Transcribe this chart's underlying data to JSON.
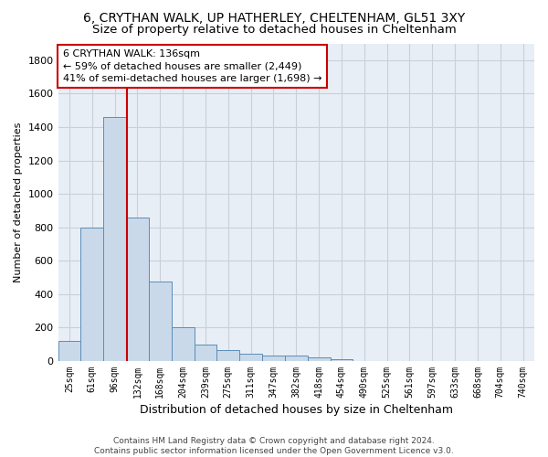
{
  "title1": "6, CRYTHAN WALK, UP HATHERLEY, CHELTENHAM, GL51 3XY",
  "title2": "Size of property relative to detached houses in Cheltenham",
  "xlabel": "Distribution of detached houses by size in Cheltenham",
  "ylabel": "Number of detached properties",
  "bar_labels": [
    "25sqm",
    "61sqm",
    "96sqm",
    "132sqm",
    "168sqm",
    "204sqm",
    "239sqm",
    "275sqm",
    "311sqm",
    "347sqm",
    "382sqm",
    "418sqm",
    "454sqm",
    "490sqm",
    "525sqm",
    "561sqm",
    "597sqm",
    "633sqm",
    "668sqm",
    "704sqm",
    "740sqm"
  ],
  "bar_values": [
    120,
    800,
    1460,
    860,
    475,
    200,
    100,
    65,
    45,
    35,
    30,
    20,
    10,
    2,
    0,
    0,
    0,
    0,
    0,
    0,
    0
  ],
  "bar_color": "#c9d9ea",
  "bar_edge_color": "#5b8db8",
  "annotation_box_text": "6 CRYTHAN WALK: 136sqm\n← 59% of detached houses are smaller (2,449)\n41% of semi-detached houses are larger (1,698) →",
  "vline_color": "#cc0000",
  "annotation_box_facecolor": "white",
  "annotation_box_edgecolor": "#cc0000",
  "footer_text": "Contains HM Land Registry data © Crown copyright and database right 2024.\nContains public sector information licensed under the Open Government Licence v3.0.",
  "ylim": [
    0,
    1900
  ],
  "yticks": [
    0,
    200,
    400,
    600,
    800,
    1000,
    1200,
    1400,
    1600,
    1800
  ],
  "background_color": "#e8eef5",
  "grid_color": "#c8d0da",
  "title_fontsize": 10,
  "subtitle_fontsize": 9.5
}
